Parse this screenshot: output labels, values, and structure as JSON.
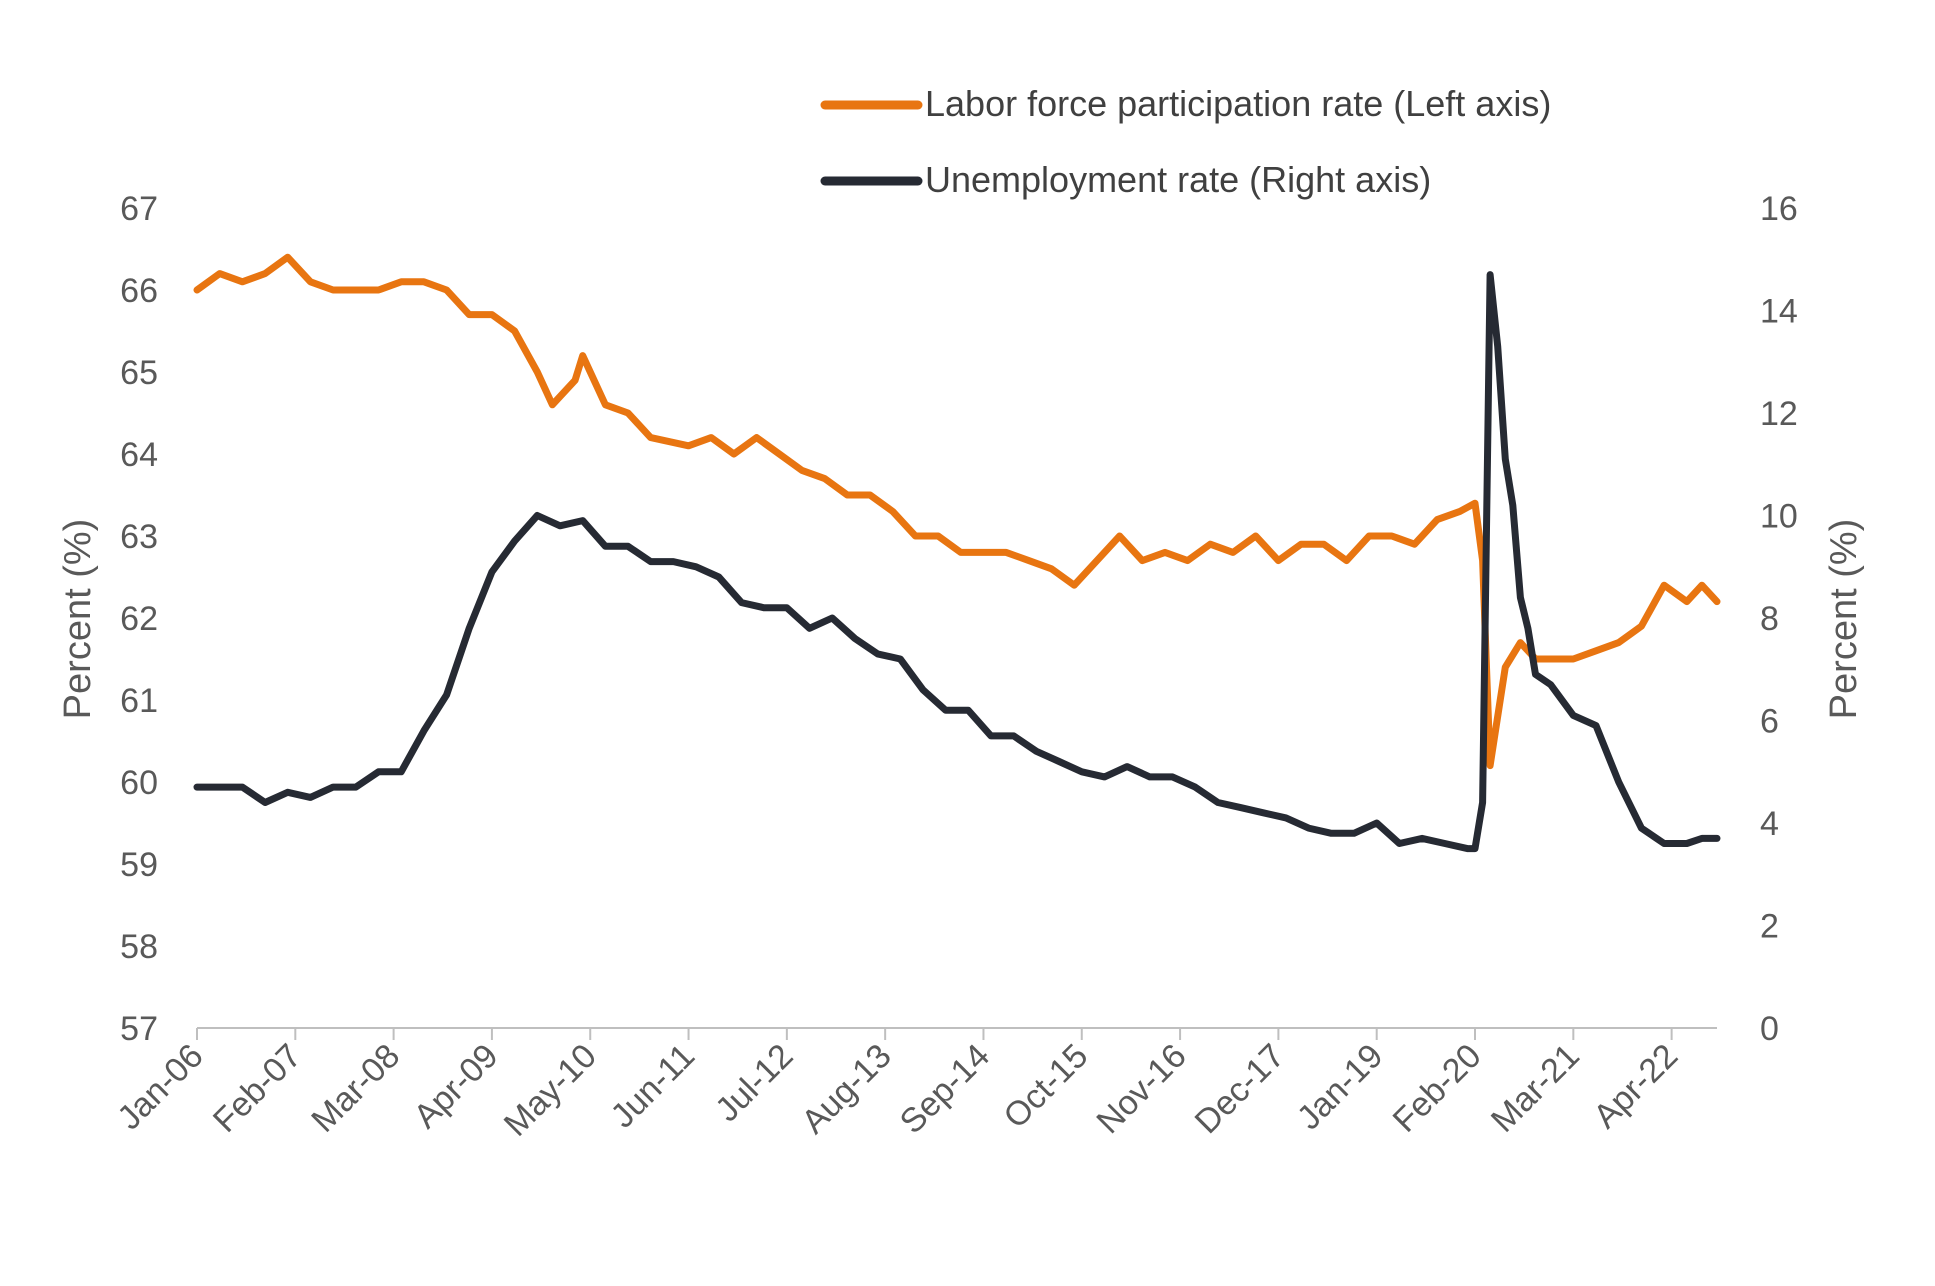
{
  "chart_data": {
    "type": "line",
    "title": "",
    "x_tick_labels": [
      "Jan-06",
      "Feb-07",
      "Mar-08",
      "Apr-09",
      "May-10",
      "Jun-11",
      "Jul-12",
      "Aug-13",
      "Sep-14",
      "Oct-15",
      "Nov-16",
      "Dec-17",
      "Jan-19",
      "Feb-20",
      "Mar-21",
      "Apr-22"
    ],
    "x_range": [
      "2006-01",
      "2022-10"
    ],
    "ylabel_left": "Percent (%)",
    "ylabel_right": "Percent (%)",
    "ylim_left": [
      57,
      67
    ],
    "ylim_right": [
      0,
      16
    ],
    "yticks_left": [
      "57",
      "58",
      "59",
      "60",
      "61",
      "62",
      "63",
      "64",
      "65",
      "66",
      "67"
    ],
    "yticks_right": [
      "0",
      "2",
      "4",
      "6",
      "8",
      "10",
      "12",
      "14",
      "16"
    ],
    "grid": false,
    "legend_position": "top",
    "series": [
      {
        "name": "Labor force participation rate (Left axis)",
        "axis": "left",
        "color": "#E87511",
        "points": [
          [
            "2006-01",
            66.0
          ],
          [
            "2006-04",
            66.2
          ],
          [
            "2006-07",
            66.1
          ],
          [
            "2006-10",
            66.2
          ],
          [
            "2007-01",
            66.4
          ],
          [
            "2007-04",
            66.1
          ],
          [
            "2007-07",
            66.0
          ],
          [
            "2008-01",
            66.0
          ],
          [
            "2008-04",
            66.1
          ],
          [
            "2008-07",
            66.1
          ],
          [
            "2008-10",
            66.0
          ],
          [
            "2009-01",
            65.7
          ],
          [
            "2009-04",
            65.7
          ],
          [
            "2009-07",
            65.5
          ],
          [
            "2009-10",
            65.0
          ],
          [
            "2009-12",
            64.6
          ],
          [
            "2010-03",
            64.9
          ],
          [
            "2010-04",
            65.2
          ],
          [
            "2010-07",
            64.6
          ],
          [
            "2010-10",
            64.5
          ],
          [
            "2011-01",
            64.2
          ],
          [
            "2011-06",
            64.1
          ],
          [
            "2011-09",
            64.2
          ],
          [
            "2011-12",
            64.0
          ],
          [
            "2012-03",
            64.2
          ],
          [
            "2012-06",
            64.0
          ],
          [
            "2012-09",
            63.8
          ],
          [
            "2012-12",
            63.7
          ],
          [
            "2013-03",
            63.5
          ],
          [
            "2013-06",
            63.5
          ],
          [
            "2013-09",
            63.3
          ],
          [
            "2013-12",
            63.0
          ],
          [
            "2014-03",
            63.0
          ],
          [
            "2014-06",
            62.8
          ],
          [
            "2014-09",
            62.8
          ],
          [
            "2014-12",
            62.8
          ],
          [
            "2015-03",
            62.7
          ],
          [
            "2015-06",
            62.6
          ],
          [
            "2015-09",
            62.4
          ],
          [
            "2015-12",
            62.7
          ],
          [
            "2016-03",
            63.0
          ],
          [
            "2016-06",
            62.7
          ],
          [
            "2016-09",
            62.8
          ],
          [
            "2016-12",
            62.7
          ],
          [
            "2017-03",
            62.9
          ],
          [
            "2017-06",
            62.8
          ],
          [
            "2017-09",
            63.0
          ],
          [
            "2017-12",
            62.7
          ],
          [
            "2018-03",
            62.9
          ],
          [
            "2018-06",
            62.9
          ],
          [
            "2018-09",
            62.7
          ],
          [
            "2018-12",
            63.0
          ],
          [
            "2019-03",
            63.0
          ],
          [
            "2019-06",
            62.9
          ],
          [
            "2019-09",
            63.2
          ],
          [
            "2019-12",
            63.3
          ],
          [
            "2020-02",
            63.4
          ],
          [
            "2020-03",
            62.7
          ],
          [
            "2020-04",
            60.2
          ],
          [
            "2020-05",
            60.8
          ],
          [
            "2020-06",
            61.4
          ],
          [
            "2020-08",
            61.7
          ],
          [
            "2020-10",
            61.5
          ],
          [
            "2020-12",
            61.5
          ],
          [
            "2021-03",
            61.5
          ],
          [
            "2021-06",
            61.6
          ],
          [
            "2021-09",
            61.7
          ],
          [
            "2021-12",
            61.9
          ],
          [
            "2022-03",
            62.4
          ],
          [
            "2022-06",
            62.2
          ],
          [
            "2022-08",
            62.4
          ],
          [
            "2022-10",
            62.2
          ]
        ]
      },
      {
        "name": "Unemployment rate (Right axis)",
        "axis": "right",
        "color": "#262A33",
        "points": [
          [
            "2006-01",
            4.7
          ],
          [
            "2006-04",
            4.7
          ],
          [
            "2006-07",
            4.7
          ],
          [
            "2006-10",
            4.4
          ],
          [
            "2007-01",
            4.6
          ],
          [
            "2007-04",
            4.5
          ],
          [
            "2007-07",
            4.7
          ],
          [
            "2007-10",
            4.7
          ],
          [
            "2008-01",
            5.0
          ],
          [
            "2008-04",
            5.0
          ],
          [
            "2008-07",
            5.8
          ],
          [
            "2008-10",
            6.5
          ],
          [
            "2009-01",
            7.8
          ],
          [
            "2009-04",
            8.9
          ],
          [
            "2009-07",
            9.5
          ],
          [
            "2009-10",
            10.0
          ],
          [
            "2010-01",
            9.8
          ],
          [
            "2010-04",
            9.9
          ],
          [
            "2010-07",
            9.4
          ],
          [
            "2010-10",
            9.4
          ],
          [
            "2011-01",
            9.1
          ],
          [
            "2011-04",
            9.1
          ],
          [
            "2011-07",
            9.0
          ],
          [
            "2011-10",
            8.8
          ],
          [
            "2012-01",
            8.3
          ],
          [
            "2012-04",
            8.2
          ],
          [
            "2012-07",
            8.2
          ],
          [
            "2012-10",
            7.8
          ],
          [
            "2013-01",
            8.0
          ],
          [
            "2013-04",
            7.6
          ],
          [
            "2013-07",
            7.3
          ],
          [
            "2013-10",
            7.2
          ],
          [
            "2014-01",
            6.6
          ],
          [
            "2014-04",
            6.2
          ],
          [
            "2014-07",
            6.2
          ],
          [
            "2014-10",
            5.7
          ],
          [
            "2015-01",
            5.7
          ],
          [
            "2015-04",
            5.4
          ],
          [
            "2015-07",
            5.2
          ],
          [
            "2015-10",
            5.0
          ],
          [
            "2016-01",
            4.9
          ],
          [
            "2016-04",
            5.1
          ],
          [
            "2016-07",
            4.9
          ],
          [
            "2016-10",
            4.9
          ],
          [
            "2017-01",
            4.7
          ],
          [
            "2017-04",
            4.4
          ],
          [
            "2017-07",
            4.3
          ],
          [
            "2017-10",
            4.2
          ],
          [
            "2018-01",
            4.1
          ],
          [
            "2018-04",
            3.9
          ],
          [
            "2018-07",
            3.8
          ],
          [
            "2018-10",
            3.8
          ],
          [
            "2019-01",
            4.0
          ],
          [
            "2019-04",
            3.6
          ],
          [
            "2019-07",
            3.7
          ],
          [
            "2019-10",
            3.6
          ],
          [
            "2020-01",
            3.5
          ],
          [
            "2020-02",
            3.5
          ],
          [
            "2020-03",
            4.4
          ],
          [
            "2020-04",
            14.7
          ],
          [
            "2020-05",
            13.3
          ],
          [
            "2020-06",
            11.1
          ],
          [
            "2020-07",
            10.2
          ],
          [
            "2020-08",
            8.4
          ],
          [
            "2020-09",
            7.8
          ],
          [
            "2020-10",
            6.9
          ],
          [
            "2020-12",
            6.7
          ],
          [
            "2021-03",
            6.1
          ],
          [
            "2021-06",
            5.9
          ],
          [
            "2021-09",
            4.8
          ],
          [
            "2021-12",
            3.9
          ],
          [
            "2022-03",
            3.6
          ],
          [
            "2022-06",
            3.6
          ],
          [
            "2022-08",
            3.7
          ],
          [
            "2022-10",
            3.7
          ]
        ]
      }
    ]
  }
}
